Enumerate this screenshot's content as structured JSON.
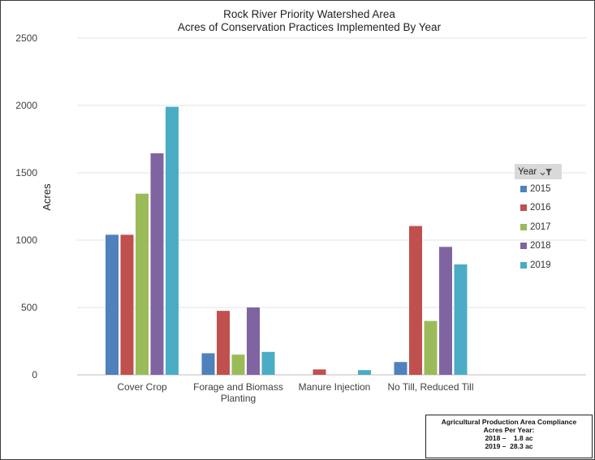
{
  "chart_data": {
    "type": "bar",
    "title": "Rock River Priority Watershed Area",
    "subtitle": "Acres of Conservation Practices Implemented By Year",
    "ylabel": "Acres",
    "xlabel": "",
    "ylim": [
      0,
      2500
    ],
    "yticks": [
      0,
      500,
      1000,
      1500,
      2000,
      2500
    ],
    "grid": true,
    "legend_position": "right",
    "categories": [
      "Cover Crop",
      "Forage and Biomass Planting",
      "Manure Injection",
      "No Till, Reduced Till"
    ],
    "category_label_lines": [
      [
        "Cover Crop"
      ],
      [
        "Forage and Biomass",
        "Planting"
      ],
      [
        "Manure Injection"
      ],
      [
        "No Till, Reduced Till"
      ]
    ],
    "series": [
      {
        "name": "2015",
        "color": "#4f81bd",
        "values": [
          1040,
          160,
          0,
          95
        ]
      },
      {
        "name": "2016",
        "color": "#c0504d",
        "values": [
          1040,
          475,
          40,
          1105
        ]
      },
      {
        "name": "2017",
        "color": "#9bbb59",
        "values": [
          1345,
          150,
          0,
          400
        ]
      },
      {
        "name": "2018",
        "color": "#8064a2",
        "values": [
          1645,
          500,
          0,
          950
        ]
      },
      {
        "name": "2019",
        "color": "#4bacc6",
        "values": [
          1990,
          170,
          35,
          820
        ]
      }
    ]
  },
  "legend": {
    "header": "Year",
    "filter_icon": "filter-dropdown-icon"
  },
  "note": {
    "title": "Agricultural Production Area Compliance",
    "subtitle": "Acres Per Year:",
    "line1": "2018 –    1.8 ac",
    "line2": "2019 –  28.3 ac"
  }
}
